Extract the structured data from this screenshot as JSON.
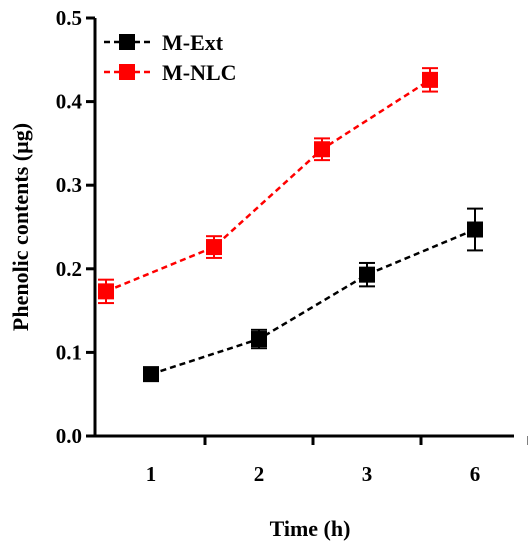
{
  "chart_data": {
    "type": "line",
    "title": "",
    "xlabel": "Time (h)",
    "ylabel": "Phenolic contents (µg)",
    "categories": [
      "1",
      "2",
      "3",
      "6"
    ],
    "ylim": [
      0,
      0.5
    ],
    "yticks": [
      "0.0",
      "0.1",
      "0.2",
      "0.3",
      "0.4",
      "0.5"
    ],
    "grid": false,
    "legend_position": "top-left",
    "series": [
      {
        "name": "M-Ext",
        "color": "#000000",
        "values": [
          0.074,
          0.116,
          0.193,
          0.247
        ],
        "errors": [
          0.008,
          0.011,
          0.014,
          0.025
        ]
      },
      {
        "name": "M-NLC",
        "color": "#ff0000",
        "values": [
          0.173,
          0.226,
          0.343,
          0.426
        ],
        "errors": [
          0.014,
          0.013,
          0.013,
          0.014
        ]
      }
    ]
  }
}
